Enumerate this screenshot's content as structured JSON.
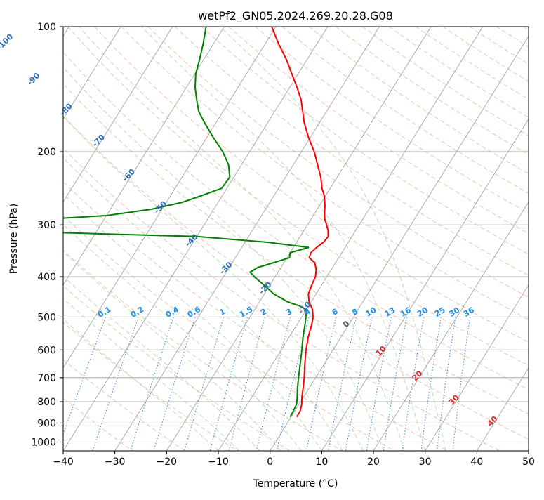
{
  "chart_data": {
    "type": "line",
    "chart_kind": "skew-T log-P diagram",
    "title": "wetPf2_GN05.2024.269.20.28.G08",
    "xlabel": "Temperature (°C)",
    "ylabel": "Pressure (hPa)",
    "xlim": [
      -40,
      50
    ],
    "ylim": [
      1050,
      100
    ],
    "y_scale": "log",
    "x_ticks": [
      -40,
      -30,
      -20,
      -10,
      0,
      10,
      20,
      30,
      40,
      50
    ],
    "y_ticks": [
      100,
      200,
      300,
      400,
      500,
      600,
      700,
      800,
      900,
      1000
    ],
    "grid": true,
    "isotherm_labels": [
      -100,
      -90,
      -80,
      -70,
      -60,
      -50,
      -40,
      -30,
      -20,
      -10,
      0,
      10,
      20,
      30,
      40
    ],
    "mixing_ratio_labels": [
      "0.1",
      "0.2",
      "0.4",
      "0.6",
      "1",
      "1.5",
      "2",
      "3",
      "4",
      "6",
      "8",
      "10",
      "13",
      "16",
      "20",
      "25",
      "30",
      "36"
    ],
    "series": [
      {
        "color": "#ff0000",
        "values": [
          [
            870,
            1.1
          ],
          [
            840,
            1.0
          ],
          [
            810,
            0.5
          ],
          [
            780,
            -0.3
          ],
          [
            740,
            -1.2
          ],
          [
            700,
            -2.2
          ],
          [
            650,
            -3.7
          ],
          [
            600,
            -5.2
          ],
          [
            560,
            -6.3
          ],
          [
            520,
            -7.2
          ],
          [
            500,
            -7.8
          ],
          [
            480,
            -8.8
          ],
          [
            460,
            -10.4
          ],
          [
            440,
            -11.5
          ],
          [
            420,
            -11.9
          ],
          [
            400,
            -12.2
          ],
          [
            385,
            -12.9
          ],
          [
            370,
            -14.0
          ],
          [
            360,
            -15.7
          ],
          [
            350,
            -16.0
          ],
          [
            340,
            -15.5
          ],
          [
            330,
            -14.8
          ],
          [
            320,
            -14.6
          ],
          [
            310,
            -15.3
          ],
          [
            300,
            -16.3
          ],
          [
            290,
            -17.4
          ],
          [
            280,
            -18.2
          ],
          [
            270,
            -18.9
          ],
          [
            255,
            -20.3
          ],
          [
            245,
            -21.6
          ],
          [
            230,
            -23.2
          ],
          [
            215,
            -25.3
          ],
          [
            200,
            -27.5
          ],
          [
            185,
            -30.3
          ],
          [
            170,
            -33.0
          ],
          [
            160,
            -34.6
          ],
          [
            150,
            -36.3
          ],
          [
            140,
            -38.6
          ],
          [
            130,
            -41.2
          ],
          [
            120,
            -44.0
          ],
          [
            110,
            -47.4
          ],
          [
            100,
            -50.8
          ]
        ]
      },
      {
        "color": "#008000",
        "values": [
          [
            870,
            -0.2
          ],
          [
            840,
            -0.3
          ],
          [
            810,
            -0.5
          ],
          [
            780,
            -1.2
          ],
          [
            740,
            -2.3
          ],
          [
            700,
            -3.3
          ],
          [
            650,
            -4.6
          ],
          [
            600,
            -6.0
          ],
          [
            560,
            -7.3
          ],
          [
            520,
            -8.5
          ],
          [
            500,
            -9.2
          ],
          [
            480,
            -10.0
          ],
          [
            470,
            -11.8
          ],
          [
            460,
            -14.5
          ],
          [
            440,
            -18.2
          ],
          [
            420,
            -21.0
          ],
          [
            400,
            -24.0
          ],
          [
            390,
            -25.4
          ],
          [
            380,
            -24.5
          ],
          [
            370,
            -22.0
          ],
          [
            360,
            -19.5
          ],
          [
            350,
            -20.0
          ],
          [
            340,
            -17.0
          ],
          [
            330,
            -26.0
          ],
          [
            320,
            -40.0
          ],
          [
            310,
            -80.0
          ],
          [
            305,
            -120.0
          ],
          [
            295,
            -80.0
          ],
          [
            285,
            -60.0
          ],
          [
            275,
            -52.0
          ],
          [
            265,
            -47.0
          ],
          [
            255,
            -44.0
          ],
          [
            245,
            -41.0
          ],
          [
            230,
            -40.8
          ],
          [
            215,
            -42.5
          ],
          [
            200,
            -45.2
          ],
          [
            185,
            -48.7
          ],
          [
            170,
            -52.3
          ],
          [
            160,
            -54.7
          ],
          [
            150,
            -56.5
          ],
          [
            140,
            -58.3
          ],
          [
            130,
            -59.8
          ],
          [
            120,
            -60.8
          ],
          [
            110,
            -62.0
          ],
          [
            100,
            -63.5
          ]
        ]
      }
    ]
  }
}
